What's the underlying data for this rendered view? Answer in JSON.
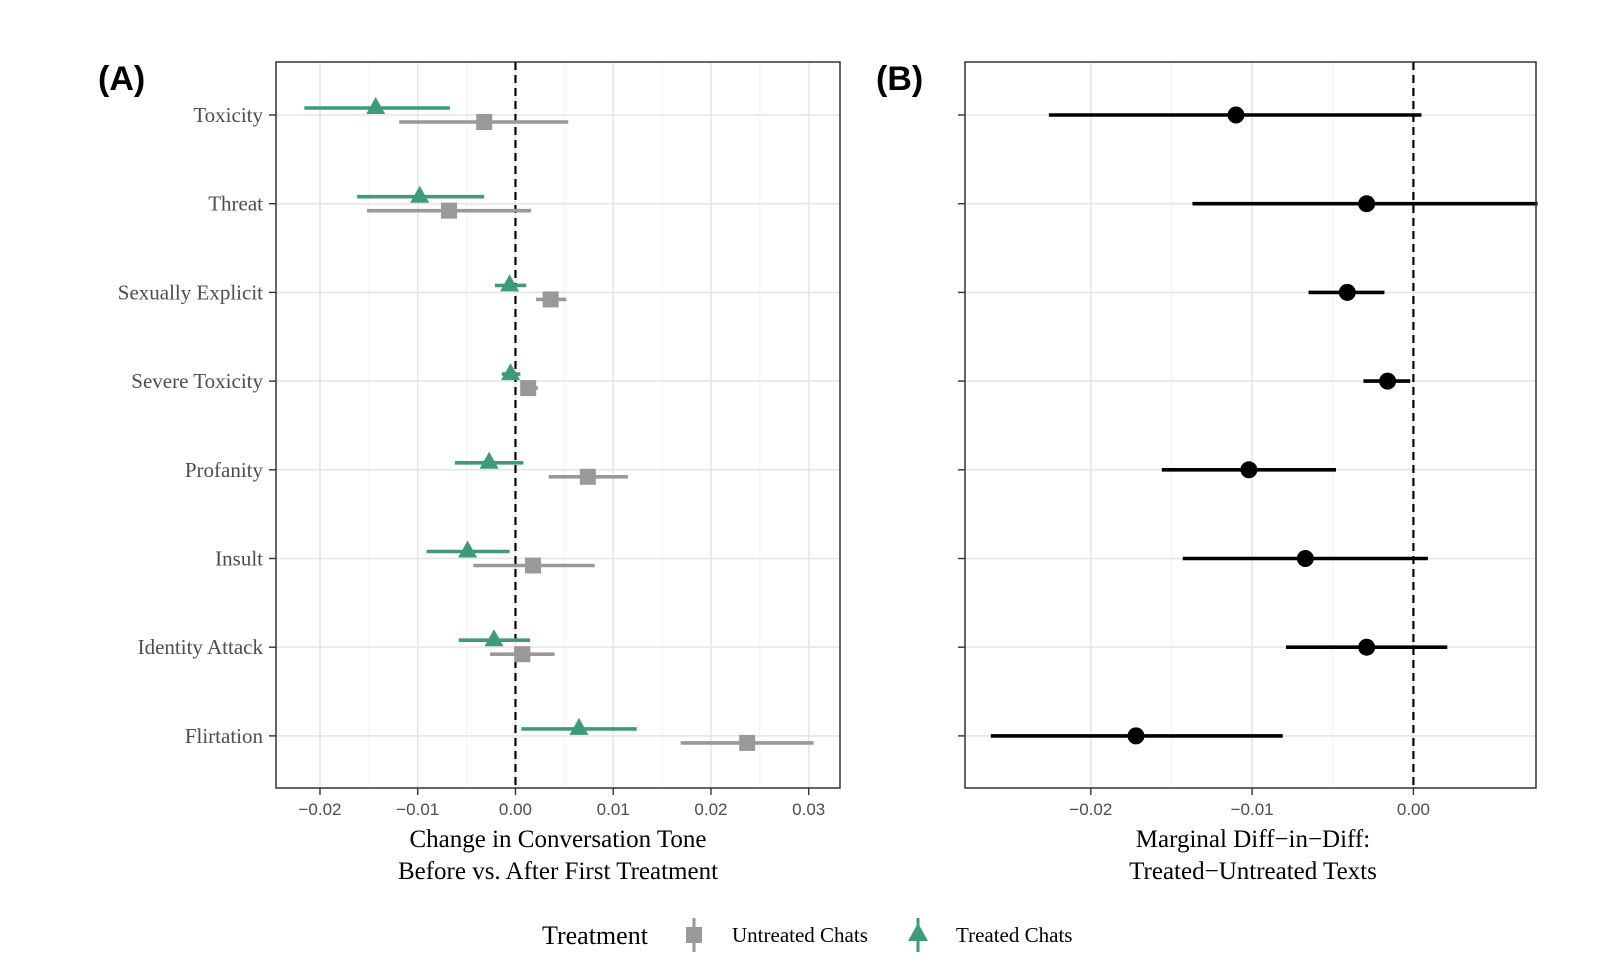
{
  "chart_data": [
    {
      "panel": "(A)",
      "type": "scatter",
      "subtype": "dot-and-whisker",
      "categories": [
        "Toxicity",
        "Threat",
        "Sexually Explicit",
        "Severe Toxicity",
        "Profanity",
        "Insult",
        "Identity Attack",
        "Flirtation"
      ],
      "xlabel": [
        "Change in Conversation Tone",
        "Before vs. After First Treatment"
      ],
      "xlim": [
        -0.0245,
        0.0332
      ],
      "xticks": [
        -0.02,
        -0.01,
        0.0,
        0.01,
        0.02,
        0.03
      ],
      "xtick_labels": [
        "−0.02",
        "−0.01",
        "0.00",
        "0.01",
        "0.02",
        "0.03"
      ],
      "reference_line": 0,
      "grid": true,
      "series": [
        {
          "name": "Treated Chats",
          "color": "#3d9b78",
          "marker": "triangle",
          "estimates": [
            -0.0143,
            -0.0098,
            -0.0006,
            -0.0005,
            -0.0027,
            -0.0049,
            -0.0022,
            0.0065
          ],
          "lower": [
            -0.0216,
            -0.0162,
            -0.0021,
            -0.0014,
            -0.0062,
            -0.0091,
            -0.0058,
            0.0006
          ],
          "upper": [
            -0.0067,
            -0.0032,
            0.0011,
            0.0005,
            0.0008,
            -0.0006,
            0.0015,
            0.0124
          ]
        },
        {
          "name": "Untreated Chats",
          "color": "#999999",
          "marker": "square",
          "estimates": [
            -0.0032,
            -0.0068,
            0.0036,
            0.0013,
            0.0074,
            0.0018,
            0.0007,
            0.0237
          ],
          "lower": [
            -0.0119,
            -0.0152,
            0.0021,
            0.0006,
            0.0034,
            -0.0043,
            -0.0026,
            0.0169
          ],
          "upper": [
            0.0054,
            0.0016,
            0.0052,
            0.0023,
            0.0115,
            0.0081,
            0.004,
            0.0305
          ]
        }
      ]
    },
    {
      "panel": "(B)",
      "type": "scatter",
      "subtype": "dot-and-whisker",
      "categories": [
        "Toxicity",
        "Threat",
        "Sexually Explicit",
        "Severe Toxicity",
        "Profanity",
        "Insult",
        "Identity Attack",
        "Flirtation"
      ],
      "xlabel": [
        "Marginal Diff−in−Diff:",
        "Treated−Untreated Texts"
      ],
      "xlim": [
        -0.0278,
        0.0076
      ],
      "xticks": [
        -0.02,
        -0.01,
        0.0
      ],
      "xtick_labels": [
        "−0.02",
        "−0.01",
        "0.00"
      ],
      "reference_line": 0,
      "grid": true,
      "series": [
        {
          "color": "#000000",
          "marker": "circle",
          "estimates": [
            -0.011,
            -0.0029,
            -0.0041,
            -0.0016,
            -0.0102,
            -0.0067,
            -0.0029,
            -0.0172
          ],
          "lower": [
            -0.0226,
            -0.0137,
            -0.0065,
            -0.0031,
            -0.0156,
            -0.0143,
            -0.0079,
            -0.0262
          ],
          "upper": [
            0.0005,
            0.0077,
            -0.0018,
            -0.0002,
            -0.0048,
            0.0009,
            0.0021,
            -0.0081
          ]
        }
      ]
    }
  ],
  "legend": {
    "title": "Treatment",
    "items": [
      "Untreated Chats",
      "Treated Chats"
    ],
    "position": "bottom"
  }
}
